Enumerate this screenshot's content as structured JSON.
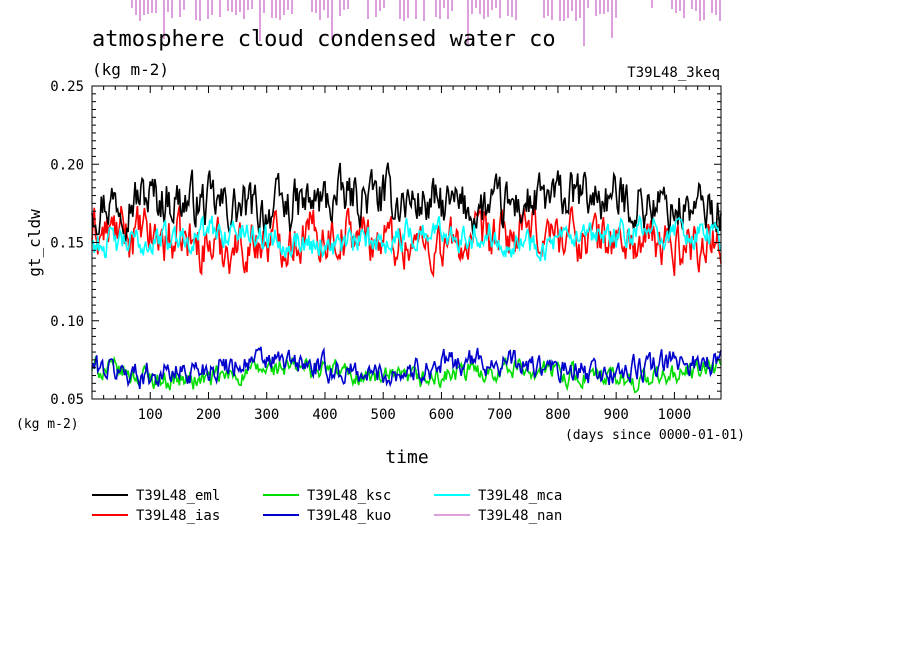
{
  "chart_data": {
    "type": "line",
    "title": "atmosphere cloud condensed water co",
    "units": "(kg m-2)",
    "run_label": "T39L48_3keq",
    "xlabel": "time",
    "x_units": "(days since 0000-01-01)",
    "ylabel": "gt_cldw",
    "y_units": "(kg m-2)",
    "xlim": [
      0,
      1080
    ],
    "ylim": [
      0.05,
      0.25
    ],
    "x_ticks": [
      100,
      200,
      300,
      400,
      500,
      600,
      700,
      800,
      900,
      1000
    ],
    "y_ticks": [
      "0.05",
      "0.10",
      "0.15",
      "0.20",
      "0.25"
    ],
    "grid": false,
    "legend_position": "bottom",
    "series": [
      {
        "name": "T39L48_eml",
        "color": "#000000",
        "mean": 0.175,
        "amp": 0.012
      },
      {
        "name": "T39L48_ias",
        "color": "#ff0000",
        "mean": 0.152,
        "amp": 0.012
      },
      {
        "name": "T39L48_ksc",
        "color": "#00dd00",
        "mean": 0.066,
        "amp": 0.005
      },
      {
        "name": "T39L48_kuo",
        "color": "#0000cc",
        "mean": 0.07,
        "amp": 0.006
      },
      {
        "name": "T39L48_mca",
        "color": "#00ffff",
        "mean": 0.153,
        "amp": 0.007
      },
      {
        "name": "T39L48_nan",
        "color": "#dda0dd",
        "mean": null,
        "amp": null
      }
    ]
  }
}
